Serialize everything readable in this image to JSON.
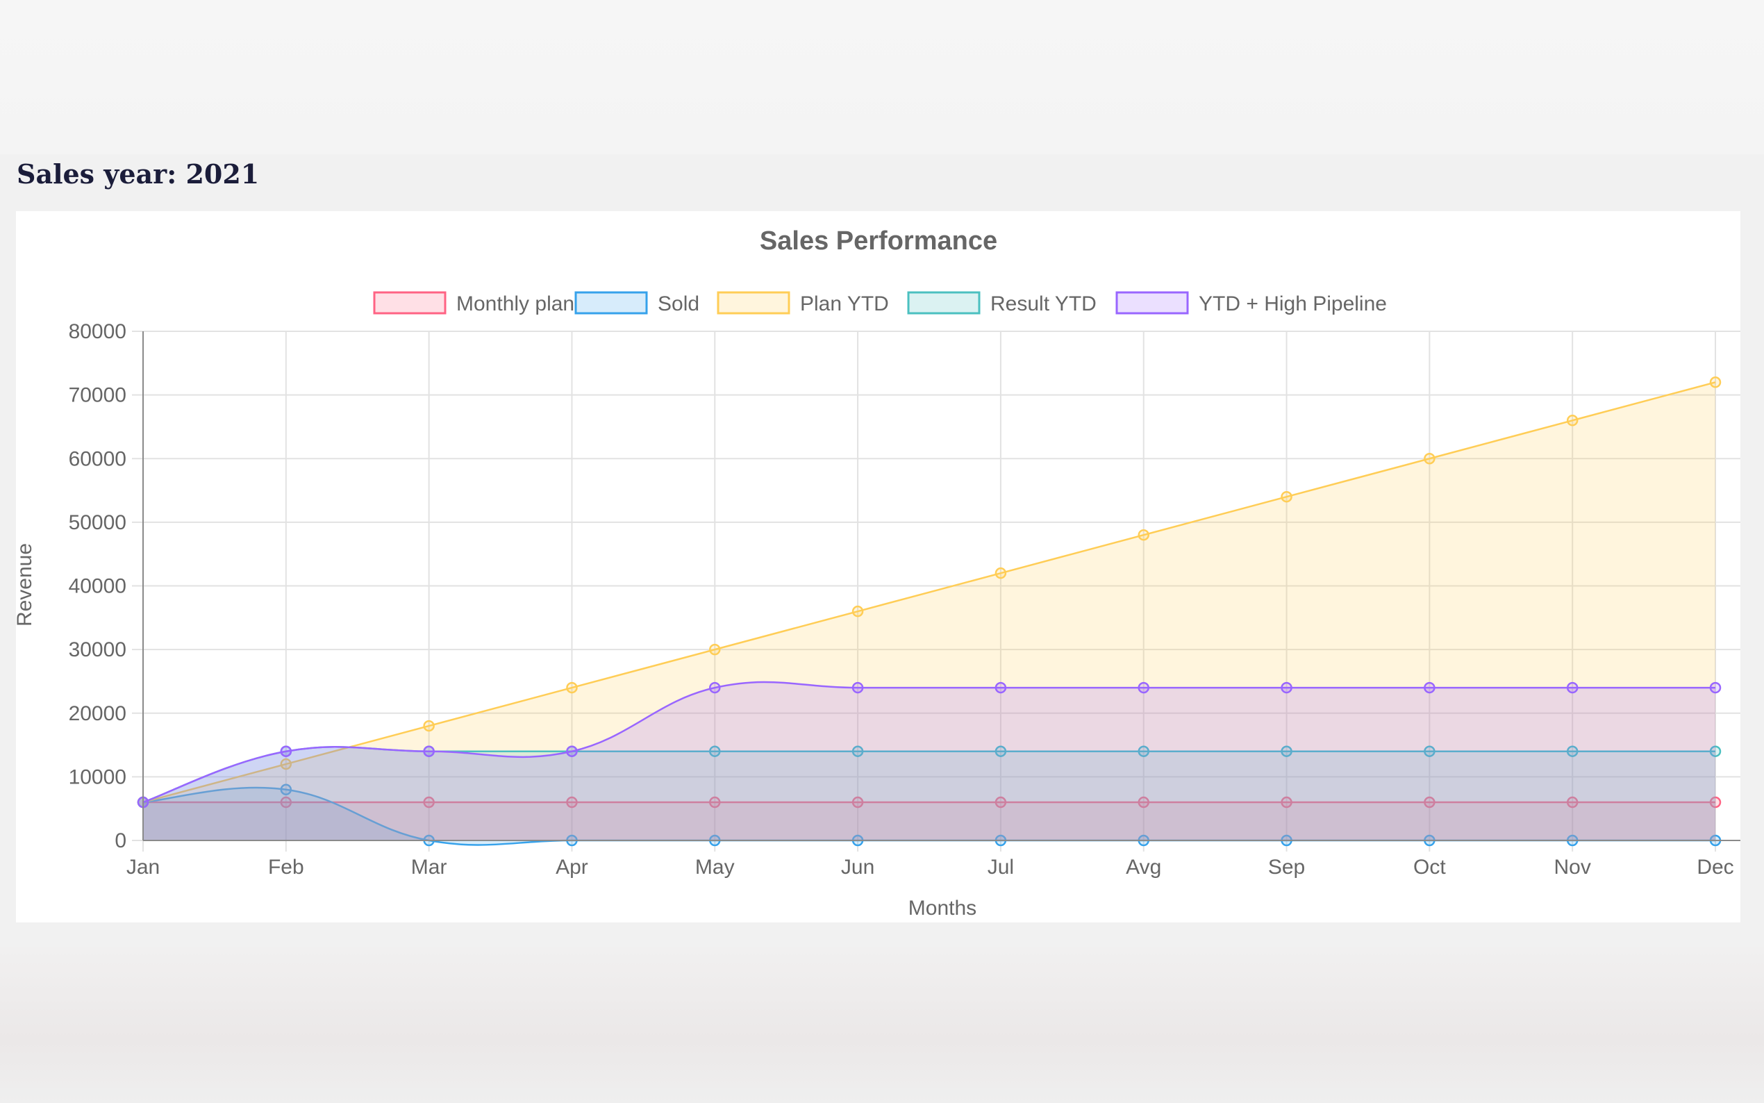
{
  "page": {
    "section_title": "Sales year: 2021"
  },
  "chart_data": {
    "type": "area",
    "title": "Sales Performance",
    "xlabel": "Months",
    "ylabel": "Revenue",
    "categories": [
      "Jan",
      "Feb",
      "Mar",
      "Apr",
      "May",
      "Jun",
      "Jul",
      "Avg",
      "Sep",
      "Oct",
      "Nov",
      "Dec"
    ],
    "ylim": [
      0,
      80000
    ],
    "yticks": [
      "0",
      "10000",
      "20000",
      "30000",
      "40000",
      "50000",
      "60000",
      "70000",
      "80000"
    ],
    "grid": true,
    "legend_position": "top",
    "series": [
      {
        "name": "Monthly plan",
        "values": [
          6000,
          6000,
          6000,
          6000,
          6000,
          6000,
          6000,
          6000,
          6000,
          6000,
          6000,
          6000
        ],
        "line_color": "#ff6384",
        "fill_color": "rgba(255,99,132,0.2)"
      },
      {
        "name": "Sold",
        "values": [
          6000,
          8000,
          0,
          0,
          0,
          0,
          0,
          0,
          0,
          0,
          0,
          0
        ],
        "line_color": "#36a2eb",
        "fill_color": "rgba(54,162,235,0.2)"
      },
      {
        "name": "Plan YTD",
        "values": [
          6000,
          12000,
          18000,
          24000,
          30000,
          36000,
          42000,
          48000,
          54000,
          60000,
          66000,
          72000
        ],
        "line_color": "#ffcd56",
        "fill_color": "rgba(255,205,86,0.2)"
      },
      {
        "name": "Result YTD",
        "values": [
          6000,
          14000,
          14000,
          14000,
          14000,
          14000,
          14000,
          14000,
          14000,
          14000,
          14000,
          14000
        ],
        "line_color": "#4bc0c0",
        "fill_color": "rgba(75,192,192,0.2)"
      },
      {
        "name": "YTD + High Pipeline",
        "values": [
          6000,
          14000,
          14000,
          14000,
          24000,
          24000,
          24000,
          24000,
          24000,
          24000,
          24000,
          24000
        ],
        "line_color": "#9966ff",
        "fill_color": "rgba(153,102,255,0.2)"
      }
    ]
  }
}
